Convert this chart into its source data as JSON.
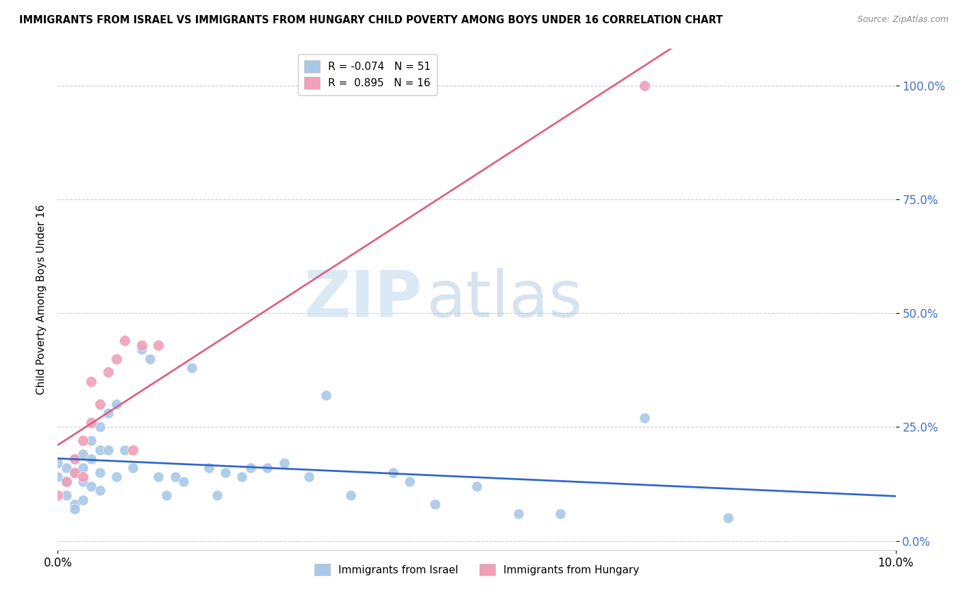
{
  "title": "IMMIGRANTS FROM ISRAEL VS IMMIGRANTS FROM HUNGARY CHILD POVERTY AMONG BOYS UNDER 16 CORRELATION CHART",
  "source": "Source: ZipAtlas.com",
  "ylabel": "Child Poverty Among Boys Under 16",
  "watermark_zip": "ZIP",
  "watermark_atlas": "atlas",
  "israel_color": "#a8c8e8",
  "hungary_color": "#f0a0b8",
  "israel_line_color": "#3366cc",
  "hungary_line_color": "#e06080",
  "israel_R": -0.074,
  "israel_N": 51,
  "hungary_R": 0.895,
  "hungary_N": 16,
  "israel_label": "Immigrants from Israel",
  "hungary_label": "Immigrants from Hungary",
  "xlim": [
    0.0,
    0.1
  ],
  "ylim": [
    -0.02,
    1.08
  ],
  "ytick_vals": [
    0.0,
    0.25,
    0.5,
    0.75,
    1.0
  ],
  "ytick_labels": [
    "0.0%",
    "25.0%",
    "50.0%",
    "75.0%",
    "100.0%"
  ],
  "xtick_vals": [
    0.0,
    0.1
  ],
  "xtick_labels": [
    "0.0%",
    "10.0%"
  ],
  "israel_x": [
    0.0,
    0.0,
    0.001,
    0.001,
    0.001,
    0.002,
    0.002,
    0.002,
    0.002,
    0.003,
    0.003,
    0.003,
    0.003,
    0.004,
    0.004,
    0.004,
    0.005,
    0.005,
    0.005,
    0.005,
    0.006,
    0.006,
    0.007,
    0.007,
    0.008,
    0.009,
    0.01,
    0.011,
    0.012,
    0.013,
    0.014,
    0.015,
    0.016,
    0.018,
    0.019,
    0.02,
    0.022,
    0.023,
    0.025,
    0.027,
    0.03,
    0.032,
    0.035,
    0.04,
    0.042,
    0.045,
    0.05,
    0.055,
    0.06,
    0.07,
    0.08
  ],
  "israel_y": [
    0.17,
    0.14,
    0.16,
    0.13,
    0.1,
    0.18,
    0.15,
    0.08,
    0.07,
    0.19,
    0.16,
    0.13,
    0.09,
    0.22,
    0.18,
    0.12,
    0.25,
    0.2,
    0.15,
    0.11,
    0.28,
    0.2,
    0.3,
    0.14,
    0.2,
    0.16,
    0.42,
    0.4,
    0.14,
    0.1,
    0.14,
    0.13,
    0.38,
    0.16,
    0.1,
    0.15,
    0.14,
    0.16,
    0.16,
    0.17,
    0.14,
    0.32,
    0.1,
    0.15,
    0.13,
    0.08,
    0.12,
    0.06,
    0.06,
    0.27,
    0.05
  ],
  "hungary_x": [
    0.0,
    0.001,
    0.002,
    0.002,
    0.003,
    0.003,
    0.004,
    0.004,
    0.005,
    0.006,
    0.007,
    0.008,
    0.009,
    0.01,
    0.012,
    0.07
  ],
  "hungary_y": [
    0.1,
    0.13,
    0.15,
    0.18,
    0.14,
    0.22,
    0.26,
    0.35,
    0.3,
    0.37,
    0.4,
    0.44,
    0.2,
    0.43,
    0.43,
    1.0
  ]
}
